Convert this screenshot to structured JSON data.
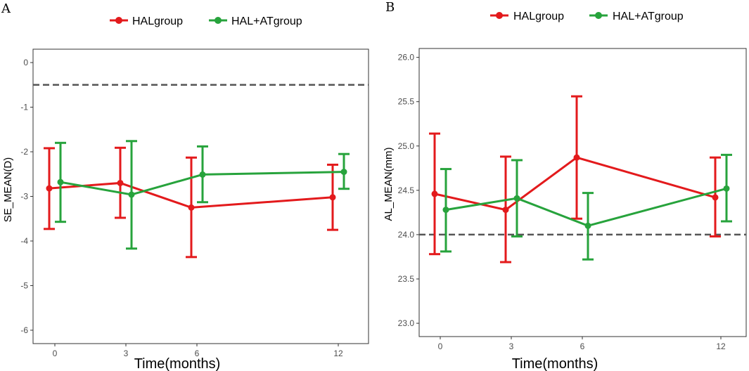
{
  "colors": {
    "hal": "#e31a1c",
    "halat": "#27a33c",
    "reference": "#555555",
    "frame": "#333333"
  },
  "legend": [
    {
      "name": "HALgroup",
      "color": "#e31a1c"
    },
    {
      "name": "HAL+ATgroup",
      "color": "#27a33c"
    }
  ],
  "chart_data": [
    {
      "panel": "A",
      "type": "line",
      "xlabel": "Time(months)",
      "ylabel": "SE_MEAN(D)",
      "x": [
        0,
        3,
        6,
        12
      ],
      "x_ticks": [
        "0",
        "3",
        "6",
        "12"
      ],
      "ylim": [
        -6.3,
        0.3
      ],
      "y_ticks": [
        0,
        -1,
        -2,
        -3,
        -4,
        -5,
        -6
      ],
      "y_tick_labels": [
        "0",
        "-1",
        "-2",
        "-3",
        "-4",
        "-5",
        "-6"
      ],
      "reference_line": -0.5,
      "grid": false,
      "legend_position": "top",
      "series": [
        {
          "name": "HALgroup",
          "color": "#e31a1c",
          "values": [
            -2.82,
            -2.7,
            -3.25,
            -3.02
          ],
          "lower": [
            -3.73,
            -3.48,
            -4.36,
            -3.75
          ],
          "upper": [
            -1.92,
            -1.91,
            -2.13,
            -2.29
          ]
        },
        {
          "name": "HAL+ATgroup",
          "color": "#27a33c",
          "values": [
            -2.68,
            -2.96,
            -2.51,
            -2.45
          ],
          "lower": [
            -3.57,
            -4.17,
            -3.13,
            -2.83
          ],
          "upper": [
            -1.8,
            -1.76,
            -1.88,
            -2.05
          ]
        }
      ]
    },
    {
      "panel": "B",
      "type": "line",
      "xlabel": "Time(months)",
      "ylabel": "AL_MEAN(mm)",
      "x": [
        0,
        3,
        6,
        12
      ],
      "x_ticks": [
        "0",
        "3",
        "6",
        "12"
      ],
      "ylim": [
        22.85,
        26.1
      ],
      "y_ticks": [
        23.0,
        23.5,
        24.0,
        24.5,
        25.0,
        25.5,
        26.0
      ],
      "y_tick_labels": [
        "23.0",
        "23.5",
        "24.0",
        "24.5",
        "25.0",
        "25.5",
        "26.0"
      ],
      "reference_line": 24.0,
      "grid": false,
      "legend_position": "top",
      "series": [
        {
          "name": "HALgroup",
          "color": "#e31a1c",
          "values": [
            24.46,
            24.28,
            24.87,
            24.42
          ],
          "lower": [
            23.78,
            23.69,
            24.18,
            23.98
          ],
          "upper": [
            25.14,
            24.88,
            25.56,
            24.87
          ]
        },
        {
          "name": "HAL+ATgroup",
          "color": "#27a33c",
          "values": [
            24.28,
            24.41,
            24.1,
            24.52
          ],
          "lower": [
            23.81,
            23.98,
            23.72,
            24.15
          ],
          "upper": [
            24.74,
            24.84,
            24.47,
            24.9
          ]
        }
      ]
    }
  ]
}
